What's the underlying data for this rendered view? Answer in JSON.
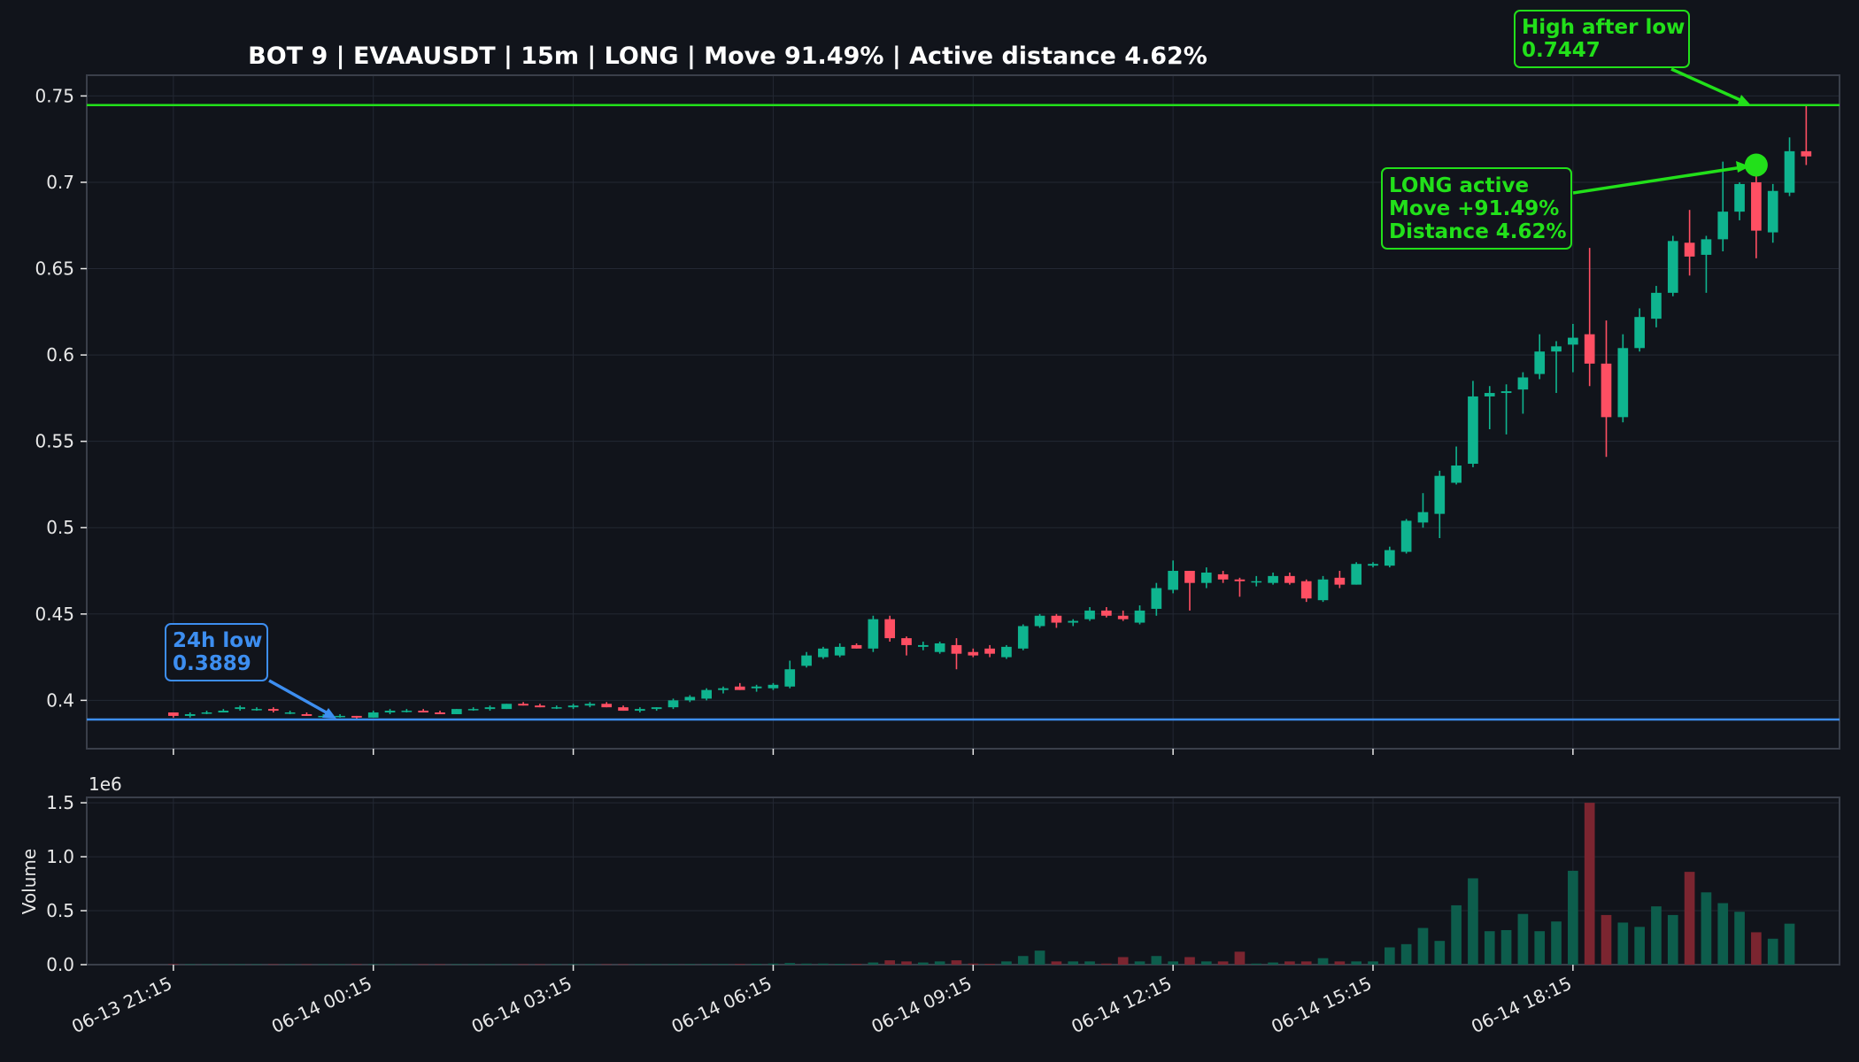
{
  "colors": {
    "background": "#11141b",
    "up": "#0fb48f",
    "down": "#ff4f63",
    "up_volume": "#0d5d4c",
    "down_volume": "#7b2530",
    "high_line": "#22e01a",
    "low_line": "#3d8ef0",
    "grid": "#232833",
    "text": "#e8e8e8"
  },
  "chart_data": [
    {
      "type": "candlestick",
      "title": "BOT 9 | EVAAUSDT | 15m | LONG | Move 91.49% | Active distance 4.62%",
      "xlabel": "",
      "ylabel": "",
      "ylim": [
        0.372,
        0.762
      ],
      "yticks": [
        0.4,
        0.45,
        0.5,
        0.55,
        0.6,
        0.65,
        0.7,
        0.75
      ],
      "ytick_labels": [
        "0.4",
        "0.45",
        "0.5",
        "0.55",
        "0.6",
        "0.65",
        "0.7",
        "0.75"
      ],
      "xticks": [
        0,
        12,
        24,
        36,
        48,
        60,
        72,
        84
      ],
      "xtick_labels": [
        "06-13 21:15",
        "06-14 00:15",
        "06-14 03:15",
        "06-14 06:15",
        "06-14 09:15",
        "06-14 12:15",
        "06-14 15:15",
        "06-14 18:15"
      ],
      "xlim": [
        -5.2,
        100
      ],
      "grid": true,
      "hlines": [
        {
          "name": "high after low",
          "value": 0.7447,
          "color": "#22e01a"
        },
        {
          "name": "24h low",
          "value": 0.3889,
          "color": "#3d8ef0"
        }
      ],
      "annotations": [
        {
          "lines": [
            "24h low",
            "0.3889"
          ],
          "color": "#3d8ef0"
        },
        {
          "lines": [
            "High after low",
            "0.7447"
          ],
          "color": "#22e01a"
        },
        {
          "lines": [
            "LONG active",
            "Move +91.49%",
            "Distance 4.62%"
          ],
          "color": "#22e01a"
        }
      ],
      "marker": {
        "x": 95,
        "y": 0.71,
        "color": "#22e01a"
      },
      "candles": [
        [
          0.393,
          0.393,
          0.39,
          0.391
        ],
        [
          0.391,
          0.393,
          0.39,
          0.392
        ],
        [
          0.393,
          0.394,
          0.392,
          0.393
        ],
        [
          0.393,
          0.395,
          0.393,
          0.394
        ],
        [
          0.395,
          0.397,
          0.394,
          0.396
        ],
        [
          0.395,
          0.396,
          0.394,
          0.395
        ],
        [
          0.395,
          0.396,
          0.393,
          0.394
        ],
        [
          0.393,
          0.394,
          0.392,
          0.393
        ],
        [
          0.392,
          0.393,
          0.391,
          0.391
        ],
        [
          0.391,
          0.392,
          0.39,
          0.391
        ],
        [
          0.391,
          0.392,
          0.39,
          0.391
        ],
        [
          0.391,
          0.391,
          0.3889,
          0.39
        ],
        [
          0.39,
          0.394,
          0.39,
          0.393
        ],
        [
          0.393,
          0.395,
          0.392,
          0.394
        ],
        [
          0.394,
          0.395,
          0.393,
          0.394
        ],
        [
          0.394,
          0.395,
          0.393,
          0.393
        ],
        [
          0.393,
          0.394,
          0.392,
          0.392
        ],
        [
          0.392,
          0.395,
          0.392,
          0.395
        ],
        [
          0.395,
          0.396,
          0.394,
          0.395
        ],
        [
          0.395,
          0.397,
          0.394,
          0.396
        ],
        [
          0.395,
          0.398,
          0.395,
          0.398
        ],
        [
          0.398,
          0.399,
          0.397,
          0.397
        ],
        [
          0.397,
          0.398,
          0.396,
          0.396
        ],
        [
          0.396,
          0.397,
          0.395,
          0.396
        ],
        [
          0.396,
          0.398,
          0.395,
          0.397
        ],
        [
          0.397,
          0.399,
          0.396,
          0.398
        ],
        [
          0.398,
          0.399,
          0.396,
          0.396
        ],
        [
          0.396,
          0.397,
          0.394,
          0.394
        ],
        [
          0.394,
          0.396,
          0.393,
          0.395
        ],
        [
          0.395,
          0.396,
          0.394,
          0.396
        ],
        [
          0.396,
          0.401,
          0.395,
          0.4
        ],
        [
          0.4,
          0.403,
          0.399,
          0.402
        ],
        [
          0.401,
          0.407,
          0.4,
          0.406
        ],
        [
          0.406,
          0.408,
          0.404,
          0.407
        ],
        [
          0.408,
          0.41,
          0.406,
          0.406
        ],
        [
          0.407,
          0.409,
          0.405,
          0.408
        ],
        [
          0.407,
          0.41,
          0.406,
          0.409
        ],
        [
          0.408,
          0.423,
          0.407,
          0.418
        ],
        [
          0.42,
          0.428,
          0.419,
          0.426
        ],
        [
          0.425,
          0.431,
          0.424,
          0.43
        ],
        [
          0.426,
          0.433,
          0.425,
          0.431
        ],
        [
          0.432,
          0.433,
          0.43,
          0.43
        ],
        [
          0.43,
          0.449,
          0.428,
          0.447
        ],
        [
          0.447,
          0.449,
          0.434,
          0.436
        ],
        [
          0.436,
          0.437,
          0.426,
          0.432
        ],
        [
          0.431,
          0.434,
          0.429,
          0.432
        ],
        [
          0.428,
          0.434,
          0.427,
          0.433
        ],
        [
          0.432,
          0.436,
          0.418,
          0.427
        ],
        [
          0.428,
          0.43,
          0.425,
          0.426
        ],
        [
          0.43,
          0.432,
          0.425,
          0.427
        ],
        [
          0.425,
          0.432,
          0.424,
          0.431
        ],
        [
          0.43,
          0.444,
          0.429,
          0.443
        ],
        [
          0.443,
          0.45,
          0.442,
          0.449
        ],
        [
          0.449,
          0.45,
          0.442,
          0.445
        ],
        [
          0.445,
          0.447,
          0.443,
          0.446
        ],
        [
          0.447,
          0.454,
          0.446,
          0.452
        ],
        [
          0.452,
          0.454,
          0.448,
          0.449
        ],
        [
          0.449,
          0.452,
          0.446,
          0.447
        ],
        [
          0.445,
          0.455,
          0.444,
          0.452
        ],
        [
          0.453,
          0.468,
          0.449,
          0.465
        ],
        [
          0.464,
          0.481,
          0.462,
          0.475
        ],
        [
          0.475,
          0.475,
          0.452,
          0.468
        ],
        [
          0.468,
          0.477,
          0.465,
          0.474
        ],
        [
          0.473,
          0.475,
          0.468,
          0.47
        ],
        [
          0.47,
          0.471,
          0.46,
          0.469
        ],
        [
          0.469,
          0.472,
          0.466,
          0.469
        ],
        [
          0.468,
          0.474,
          0.467,
          0.472
        ],
        [
          0.472,
          0.474,
          0.467,
          0.468
        ],
        [
          0.469,
          0.47,
          0.457,
          0.459
        ],
        [
          0.458,
          0.472,
          0.457,
          0.47
        ],
        [
          0.471,
          0.475,
          0.465,
          0.467
        ],
        [
          0.467,
          0.48,
          0.467,
          0.479
        ],
        [
          0.478,
          0.48,
          0.477,
          0.479
        ],
        [
          0.478,
          0.489,
          0.477,
          0.487
        ],
        [
          0.486,
          0.505,
          0.485,
          0.504
        ],
        [
          0.503,
          0.52,
          0.5,
          0.509
        ],
        [
          0.508,
          0.533,
          0.494,
          0.53
        ],
        [
          0.526,
          0.547,
          0.525,
          0.536
        ],
        [
          0.537,
          0.585,
          0.535,
          0.576
        ],
        [
          0.576,
          0.582,
          0.557,
          0.578
        ],
        [
          0.578,
          0.583,
          0.554,
          0.579
        ],
        [
          0.58,
          0.59,
          0.566,
          0.587
        ],
        [
          0.589,
          0.612,
          0.586,
          0.602
        ],
        [
          0.602,
          0.608,
          0.578,
          0.605
        ],
        [
          0.606,
          0.618,
          0.59,
          0.61
        ],
        [
          0.612,
          0.662,
          0.582,
          0.595
        ],
        [
          0.595,
          0.62,
          0.541,
          0.564
        ],
        [
          0.564,
          0.612,
          0.561,
          0.604
        ],
        [
          0.604,
          0.627,
          0.602,
          0.622
        ],
        [
          0.621,
          0.64,
          0.616,
          0.636
        ],
        [
          0.636,
          0.669,
          0.634,
          0.666
        ],
        [
          0.665,
          0.684,
          0.646,
          0.657
        ],
        [
          0.658,
          0.669,
          0.636,
          0.667
        ],
        [
          0.667,
          0.712,
          0.66,
          0.683
        ],
        [
          0.683,
          0.7,
          0.678,
          0.699
        ],
        [
          0.7,
          0.704,
          0.656,
          0.672
        ],
        [
          0.671,
          0.699,
          0.665,
          0.695
        ],
        [
          0.694,
          0.726,
          0.692,
          0.718
        ],
        [
          0.718,
          0.7447,
          0.71,
          0.715
        ]
      ]
    },
    {
      "type": "bar",
      "ylabel": "Volume",
      "y_offset_label": "1e6",
      "ylim": [
        0,
        1.55
      ],
      "yticks": [
        0,
        0.5,
        1.0,
        1.5
      ],
      "ytick_labels": [
        "0.0",
        "0.5",
        "1.0",
        "1.5"
      ],
      "unit_multiplier": 1000000,
      "values": [
        0.005,
        0.004,
        0.004,
        0.004,
        0.004,
        0.004,
        0.004,
        0.004,
        0.004,
        0.004,
        0.004,
        0.005,
        0.004,
        0.004,
        0.004,
        0.004,
        0.004,
        0.004,
        0.004,
        0.004,
        0.004,
        0.004,
        0.004,
        0.004,
        0.004,
        0.004,
        0.004,
        0.004,
        0.004,
        0.004,
        0.005,
        0.005,
        0.006,
        0.006,
        0.006,
        0.008,
        0.01,
        0.015,
        0.01,
        0.01,
        0.008,
        0.008,
        0.02,
        0.04,
        0.03,
        0.02,
        0.03,
        0.04,
        0.01,
        0.008,
        0.03,
        0.08,
        0.13,
        0.03,
        0.03,
        0.03,
        0.01,
        0.07,
        0.03,
        0.08,
        0.03,
        0.07,
        0.03,
        0.03,
        0.12,
        0.01,
        0.02,
        0.03,
        0.03,
        0.06,
        0.03,
        0.03,
        0.03,
        0.16,
        0.19,
        0.34,
        0.22,
        0.55,
        0.8,
        0.31,
        0.32,
        0.47,
        0.31,
        0.4,
        0.87,
        1.5,
        0.46,
        0.39,
        0.35,
        0.54,
        0.46,
        0.86,
        0.67,
        0.57,
        0.49,
        0.3,
        0.24,
        0.38
      ]
    }
  ]
}
